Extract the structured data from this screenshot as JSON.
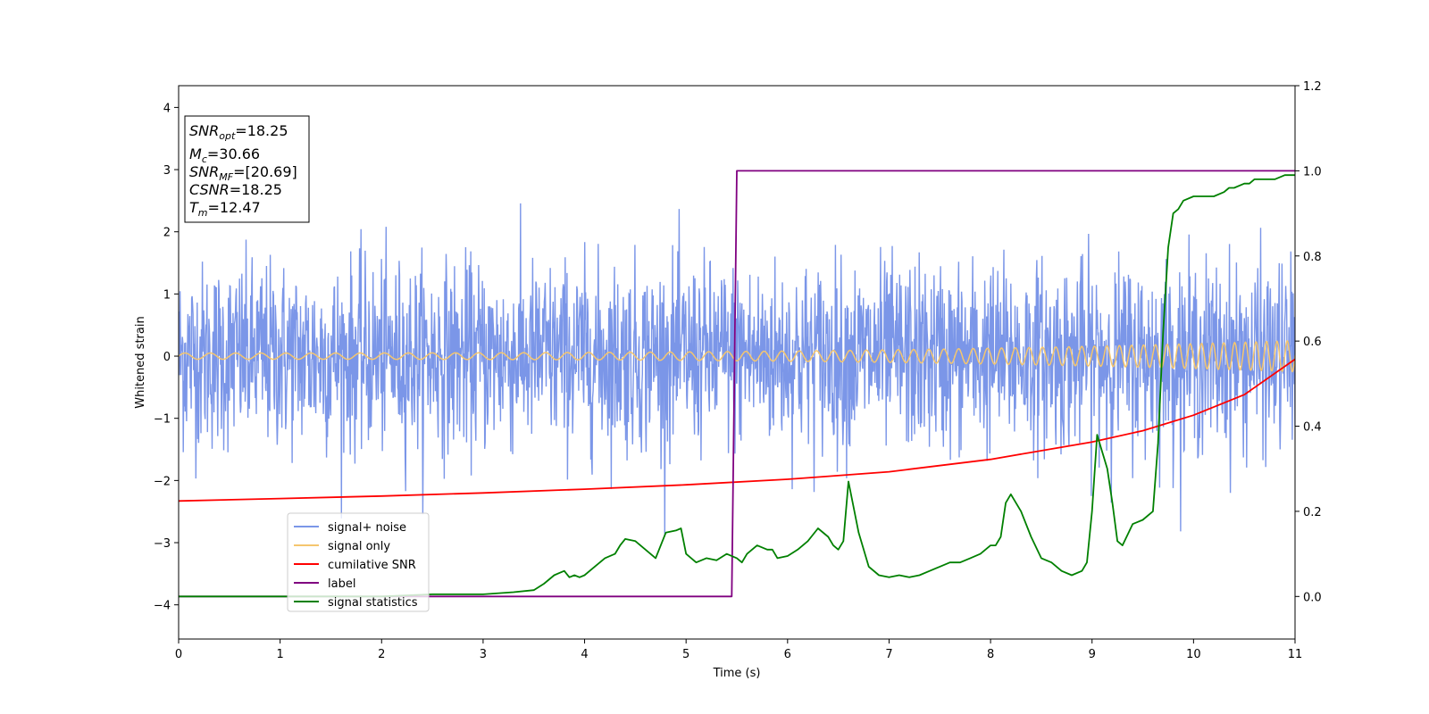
{
  "chart_data": {
    "type": "line",
    "xlabel": "Time (s)",
    "ylabel": "Whitened strain",
    "xlim": [
      0,
      11
    ],
    "ylim_left": [
      -4.55,
      4.35
    ],
    "ylim_right": [
      -0.1,
      1.2
    ],
    "x_ticks": [
      "0",
      "1",
      "2",
      "3",
      "4",
      "5",
      "6",
      "7",
      "8",
      "9",
      "10",
      "11"
    ],
    "y_left_ticks": [
      "4",
      "3",
      "2",
      "1",
      "0",
      "−1",
      "−2",
      "−3",
      "−4"
    ],
    "y_right_ticks": [
      "1.2",
      "1.0",
      "0.8",
      "0.6",
      "0.4",
      "0.2",
      "0.0"
    ],
    "grid": false,
    "legend_placement": "lower-left",
    "info_box": {
      "snr_opt": {
        "sym": "SNR",
        "sub": "opt",
        "val": "=18.25"
      },
      "mc": {
        "sym": "M",
        "sub": "c",
        "val": "=30.66"
      },
      "snr_mf": {
        "sym": "SNR",
        "sub": "MF",
        "val": "=[20.69]"
      },
      "csnr": {
        "sym": "CSNR",
        "sub": "",
        "val": "=18.25"
      },
      "tm": {
        "sym": "T",
        "sub": "m",
        "val": "=12.47"
      }
    },
    "series": [
      {
        "name": "signal+ noise",
        "color": "#7b96e8",
        "axis": "left",
        "style": "noise",
        "x_range": [
          0,
          11
        ],
        "amplitude_std": 0.75
      },
      {
        "name": "signal only",
        "color": "#f5c66e",
        "axis": "left",
        "style": "chirp",
        "x_range": [
          0,
          11
        ],
        "amplitude": [
          0.05,
          0.25
        ],
        "frequency_hz": [
          4,
          10
        ]
      },
      {
        "name": "cumilative SNR",
        "color": "#ff0000",
        "axis": "left",
        "x": [
          0,
          1,
          2,
          3,
          4,
          5,
          6,
          7,
          8,
          9,
          9.5,
          10,
          10.5,
          11
        ],
        "y": [
          -2.33,
          -2.29,
          -2.25,
          -2.2,
          -2.14,
          -2.07,
          -1.98,
          -1.86,
          -1.66,
          -1.38,
          -1.2,
          -0.95,
          -0.62,
          -0.05
        ]
      },
      {
        "name": "label",
        "color": "#800080",
        "axis": "right",
        "x": [
          0,
          5.45,
          5.5,
          11
        ],
        "y": [
          0,
          0,
          1,
          1
        ]
      },
      {
        "name": "signal statistics",
        "color": "#008000",
        "axis": "right",
        "x": [
          0,
          0.5,
          1,
          1.5,
          2,
          2.5,
          3,
          3.3,
          3.5,
          3.6,
          3.7,
          3.75,
          3.8,
          3.85,
          3.9,
          3.95,
          4.0,
          4.05,
          4.1,
          4.2,
          4.3,
          4.35,
          4.4,
          4.5,
          4.6,
          4.7,
          4.8,
          4.9,
          4.95,
          5.0,
          5.1,
          5.2,
          5.3,
          5.4,
          5.5,
          5.55,
          5.6,
          5.7,
          5.8,
          5.85,
          5.9,
          6.0,
          6.1,
          6.2,
          6.3,
          6.4,
          6.45,
          6.5,
          6.55,
          6.6,
          6.7,
          6.8,
          6.9,
          7.0,
          7.1,
          7.2,
          7.3,
          7.4,
          7.5,
          7.6,
          7.7,
          7.8,
          7.9,
          8.0,
          8.05,
          8.1,
          8.15,
          8.2,
          8.3,
          8.4,
          8.5,
          8.6,
          8.7,
          8.8,
          8.9,
          8.95,
          9.0,
          9.05,
          9.1,
          9.15,
          9.2,
          9.25,
          9.3,
          9.4,
          9.5,
          9.6,
          9.65,
          9.7,
          9.75,
          9.8,
          9.85,
          9.9,
          10.0,
          10.2,
          10.3,
          10.35,
          10.4,
          10.5,
          10.55,
          10.6,
          10.7,
          10.8,
          10.9,
          11.0
        ],
        "y": [
          0,
          0.0,
          0.0,
          0.0,
          0.0,
          0.005,
          0.005,
          0.01,
          0.015,
          0.03,
          0.05,
          0.055,
          0.06,
          0.045,
          0.05,
          0.045,
          0.05,
          0.06,
          0.07,
          0.09,
          0.1,
          0.12,
          0.135,
          0.13,
          0.11,
          0.09,
          0.15,
          0.155,
          0.16,
          0.1,
          0.08,
          0.09,
          0.085,
          0.1,
          0.09,
          0.08,
          0.1,
          0.12,
          0.11,
          0.11,
          0.09,
          0.095,
          0.11,
          0.13,
          0.16,
          0.14,
          0.12,
          0.11,
          0.13,
          0.27,
          0.15,
          0.07,
          0.05,
          0.045,
          0.05,
          0.045,
          0.05,
          0.06,
          0.07,
          0.08,
          0.08,
          0.09,
          0.1,
          0.12,
          0.12,
          0.14,
          0.22,
          0.24,
          0.2,
          0.14,
          0.09,
          0.08,
          0.06,
          0.05,
          0.06,
          0.08,
          0.2,
          0.38,
          0.34,
          0.3,
          0.22,
          0.13,
          0.12,
          0.17,
          0.18,
          0.2,
          0.36,
          0.62,
          0.82,
          0.9,
          0.91,
          0.93,
          0.94,
          0.94,
          0.95,
          0.96,
          0.96,
          0.97,
          0.97,
          0.98,
          0.98,
          0.98,
          0.99,
          0.99
        ]
      }
    ]
  }
}
